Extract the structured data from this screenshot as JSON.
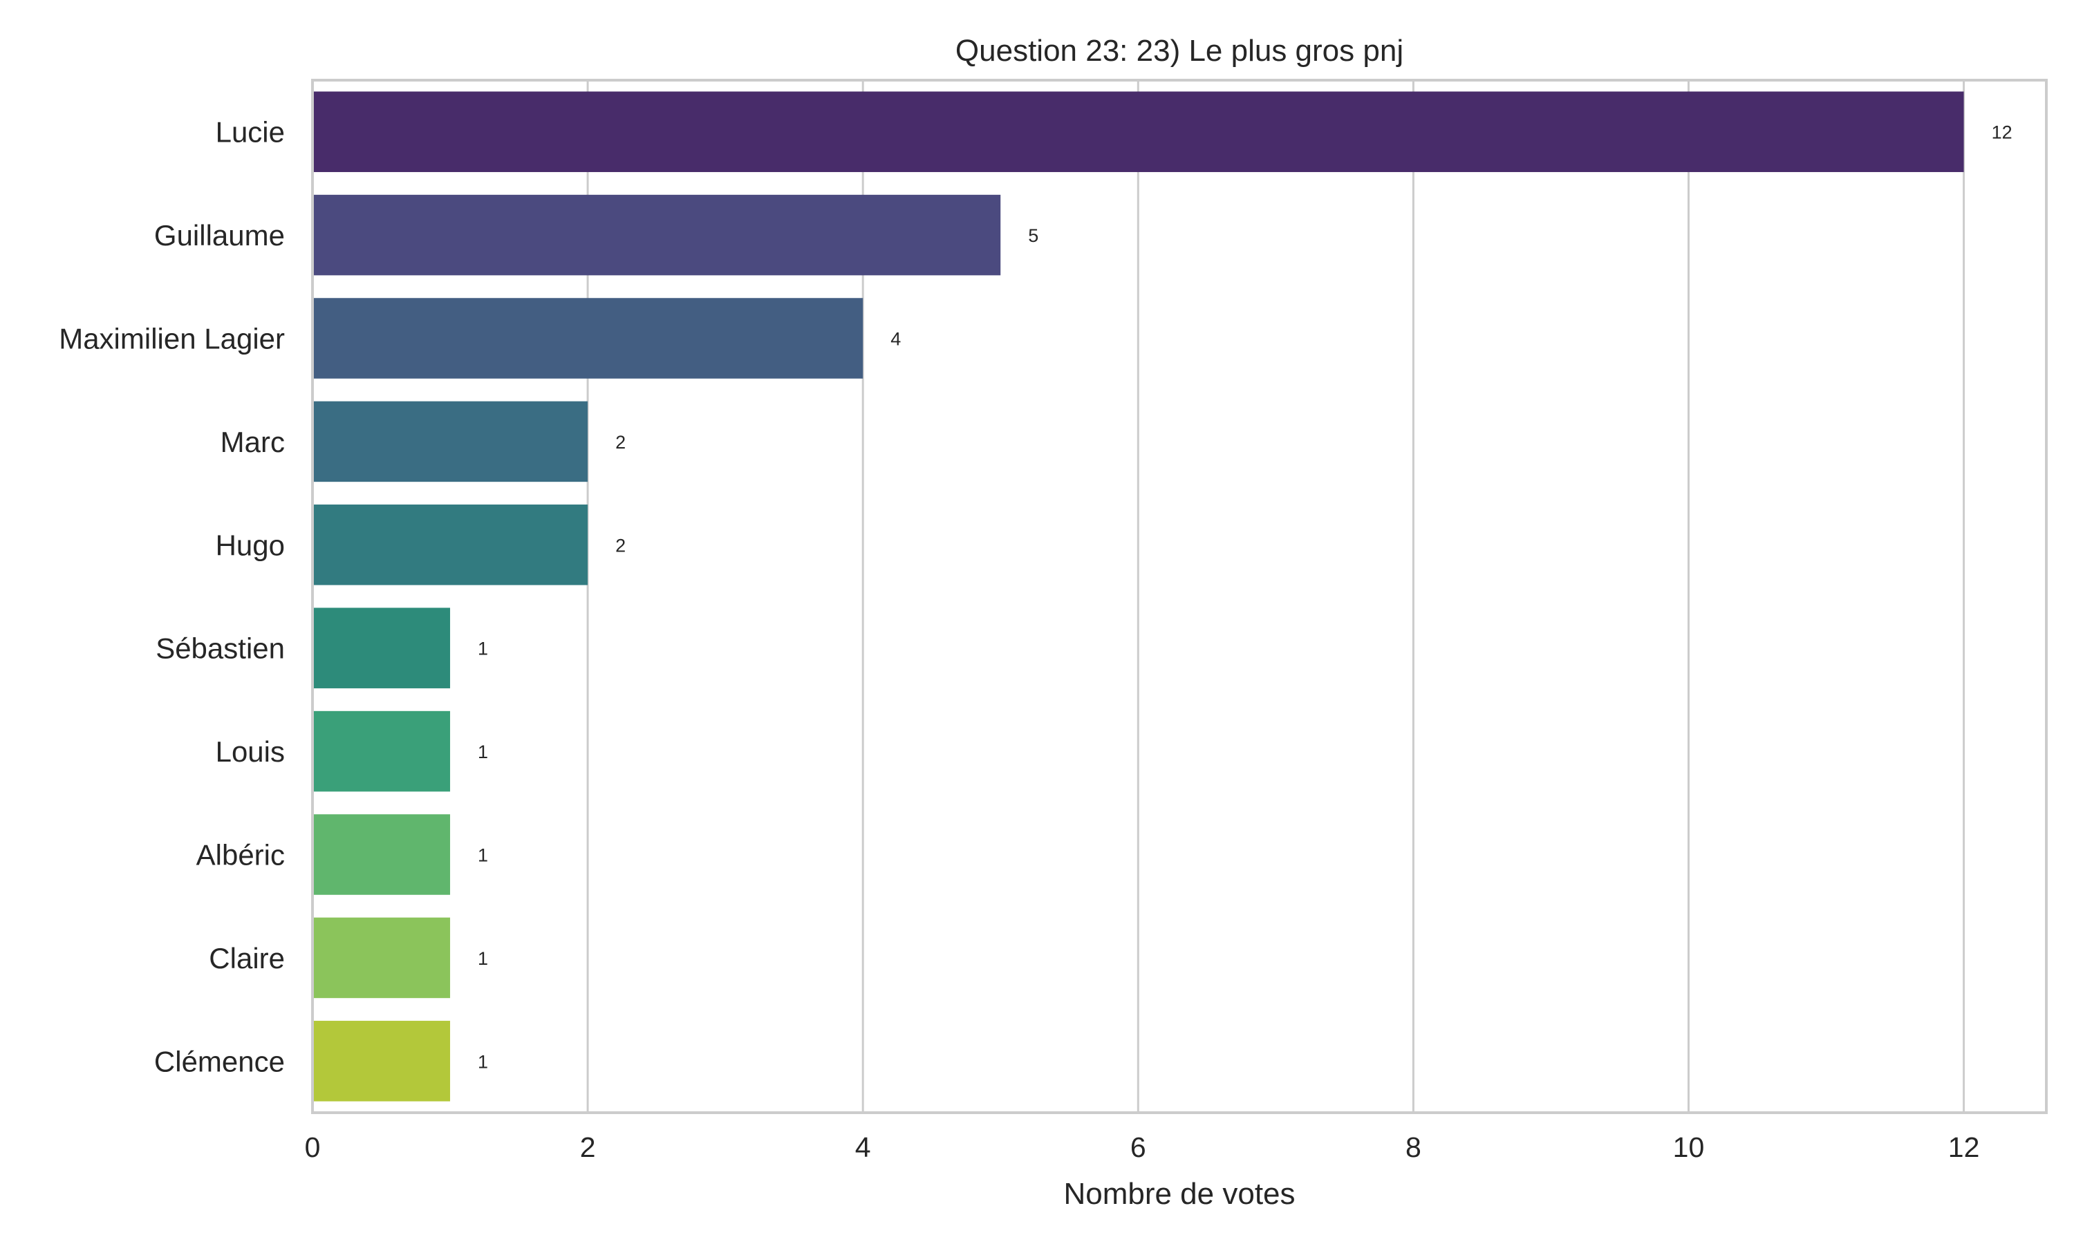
{
  "chart_data": {
    "type": "bar",
    "orientation": "horizontal",
    "title": "Question 23: 23) Le plus gros pnj",
    "xlabel": "Nombre de votes",
    "ylabel": "",
    "xlim": [
      0,
      12.6
    ],
    "xticks": [
      "0",
      "2",
      "4",
      "6",
      "8",
      "10",
      "12"
    ],
    "grid": "vertical",
    "categories": [
      "Lucie",
      "Guillaume",
      "Maximilien Lagier",
      "Marc",
      "Hugo",
      "Sébastien",
      "Louis",
      "Albéric",
      "Claire",
      "Clémence"
    ],
    "values": [
      12,
      5,
      4,
      2,
      2,
      1,
      1,
      1,
      1,
      1
    ],
    "data_labels": [
      "12",
      "5",
      "4",
      "2",
      "2",
      "1",
      "1",
      "1",
      "1",
      "1"
    ],
    "colors": [
      "#482c6a",
      "#4b4a7f",
      "#435e82",
      "#3a6d83",
      "#327b80",
      "#2d8b7a",
      "#3aa079",
      "#60b66d",
      "#8bc45b",
      "#b3c83a"
    ]
  }
}
